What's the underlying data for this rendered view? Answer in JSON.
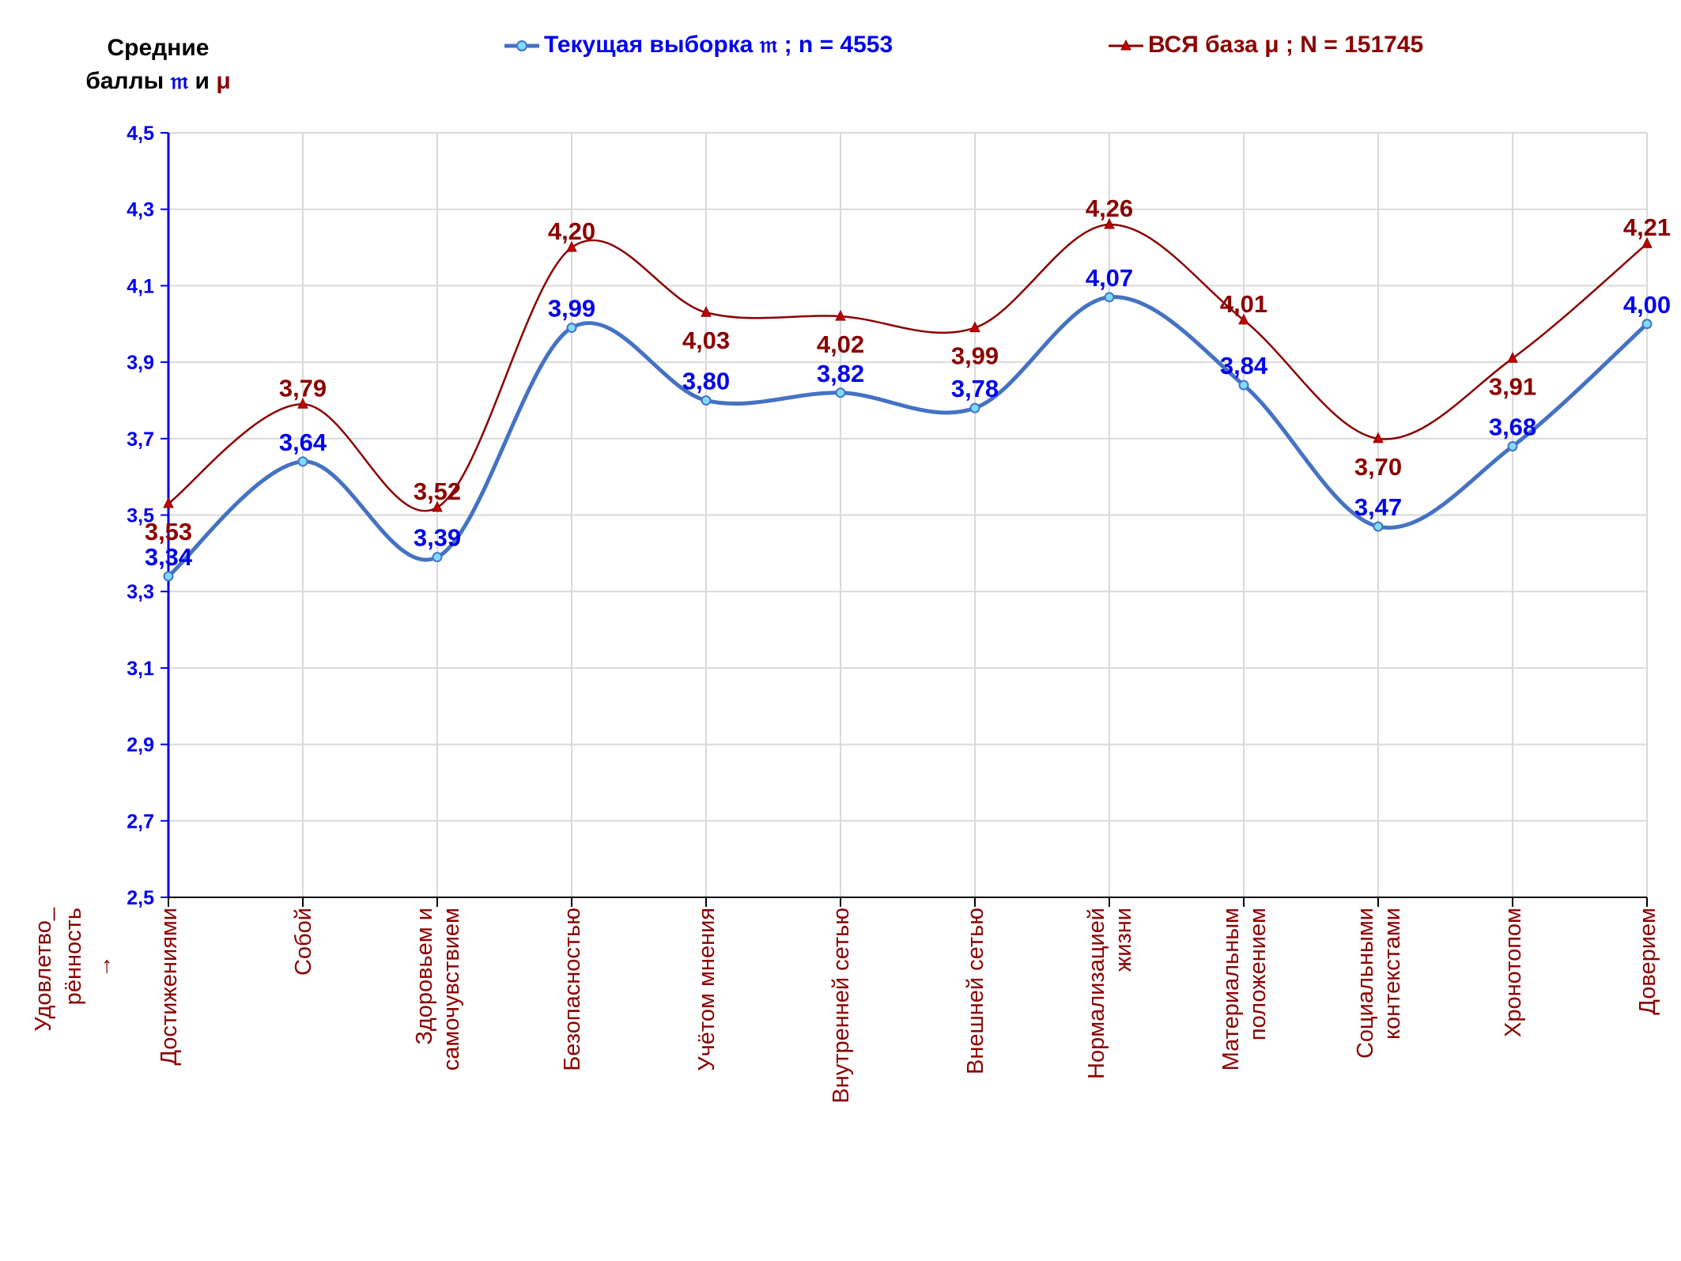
{
  "chart_data": {
    "type": "line",
    "ylabel": {
      "line1": "Средние",
      "line2_prefix": "баллы ",
      "sym_current": "𝔪",
      "mid": " и ",
      "sym_mu": "μ"
    },
    "xlabel": [
      "Удовлетво_",
      "рённость",
      "→"
    ],
    "categories": [
      [
        "Достижениями"
      ],
      [
        "Собой"
      ],
      [
        "Здоровьем и",
        "самочувствием"
      ],
      [
        "Безопасностью"
      ],
      [
        "Учётом мнения"
      ],
      [
        "Внутренней сетью"
      ],
      [
        "Внешней сетью"
      ],
      [
        "Нормализацией",
        "жизни"
      ],
      [
        "Материальным",
        "положением"
      ],
      [
        "Социальными",
        "контекстами"
      ],
      [
        "Хронотопом"
      ],
      [
        "Доверием"
      ]
    ],
    "ylim": [
      2.5,
      4.5
    ],
    "yticks": [
      "2,5",
      "2,7",
      "2,9",
      "3,1",
      "3,3",
      "3,5",
      "3,7",
      "3,9",
      "4,1",
      "4,3",
      "4,5"
    ],
    "grid": true,
    "legend_position": "top",
    "series": [
      {
        "name": "Текущая выборка 𝔪 ; n = 4553",
        "color": "#4472c4",
        "marker": "circle",
        "values": [
          3.34,
          3.64,
          3.39,
          3.99,
          3.8,
          3.82,
          3.78,
          4.07,
          3.84,
          3.47,
          3.68,
          4.0
        ],
        "labels": [
          "3,34",
          "3,64",
          "3,39",
          "3,99",
          "3,80",
          "3,82",
          "3,78",
          "4,07",
          "3,84",
          "3,47",
          "3,68",
          "4,00"
        ]
      },
      {
        "name": "ВСЯ база μ ; N = 151745",
        "color": "#8b0000",
        "marker": "triangle",
        "values": [
          3.53,
          3.79,
          3.52,
          4.2,
          4.03,
          4.02,
          3.99,
          4.26,
          4.01,
          3.7,
          3.91,
          4.21
        ],
        "labels": [
          "3,53",
          "3,79",
          "3,52",
          "4,20",
          "4,03",
          "4,02",
          "3,99",
          "4,26",
          "4,01",
          "3,70",
          "3,91",
          "4,21"
        ]
      }
    ]
  },
  "colors": {
    "axis": "#0000ee",
    "grid": "#d9d9d9",
    "current": "#4472c4",
    "current_label": "#0000ee",
    "base": "#8b0000",
    "marker_fill_current": "#7fdcff"
  }
}
